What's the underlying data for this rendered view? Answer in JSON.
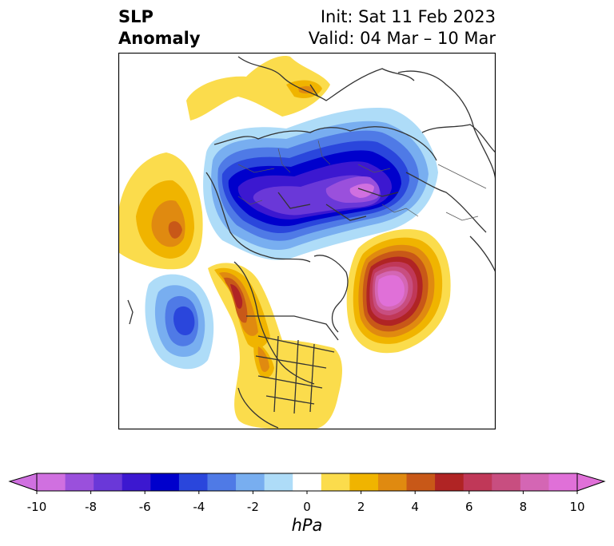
{
  "title": {
    "left_line1": "SLP",
    "left_line2": "Anomaly",
    "right_line1": "Init: Sat 11 Feb 2023",
    "right_line2": "Valid: 04 Mar – 10 Mar"
  },
  "colorbar": {
    "units": "hPa",
    "ticks": [
      "-10",
      "-8",
      "-6",
      "-4",
      "-2",
      "0",
      "2",
      "4",
      "6",
      "8",
      "10"
    ],
    "colors": [
      "#d070e0",
      "#9a50dc",
      "#6a38d8",
      "#3c18d0",
      "#0000cc",
      "#2a46dc",
      "#4f7ae6",
      "#78aef0",
      "#aedcf8",
      "#ffffff",
      "#fbdc4c",
      "#f0b400",
      "#e08a10",
      "#c85818",
      "#b02424",
      "#c03858",
      "#c84e80",
      "#d466b4",
      "#e070d8"
    ]
  },
  "map": {
    "colors": {
      "light_blue": "#aedcf8",
      "blue1": "#78aef0",
      "blue2": "#4f7ae6",
      "blue3": "#2a46dc",
      "blue4": "#0000cc",
      "purple1": "#3c18d0",
      "purple2": "#6a38d8",
      "purple3": "#9a50dc",
      "magenta": "#d070e0",
      "yellow": "#fbdc4c",
      "gold": "#f0b400",
      "orange": "#e08a10",
      "dark_orange": "#c85818",
      "red": "#b02424",
      "crimson": "#c03858",
      "rose": "#c84e80",
      "pink": "#d466b4",
      "hot_pink": "#e070d8"
    }
  }
}
